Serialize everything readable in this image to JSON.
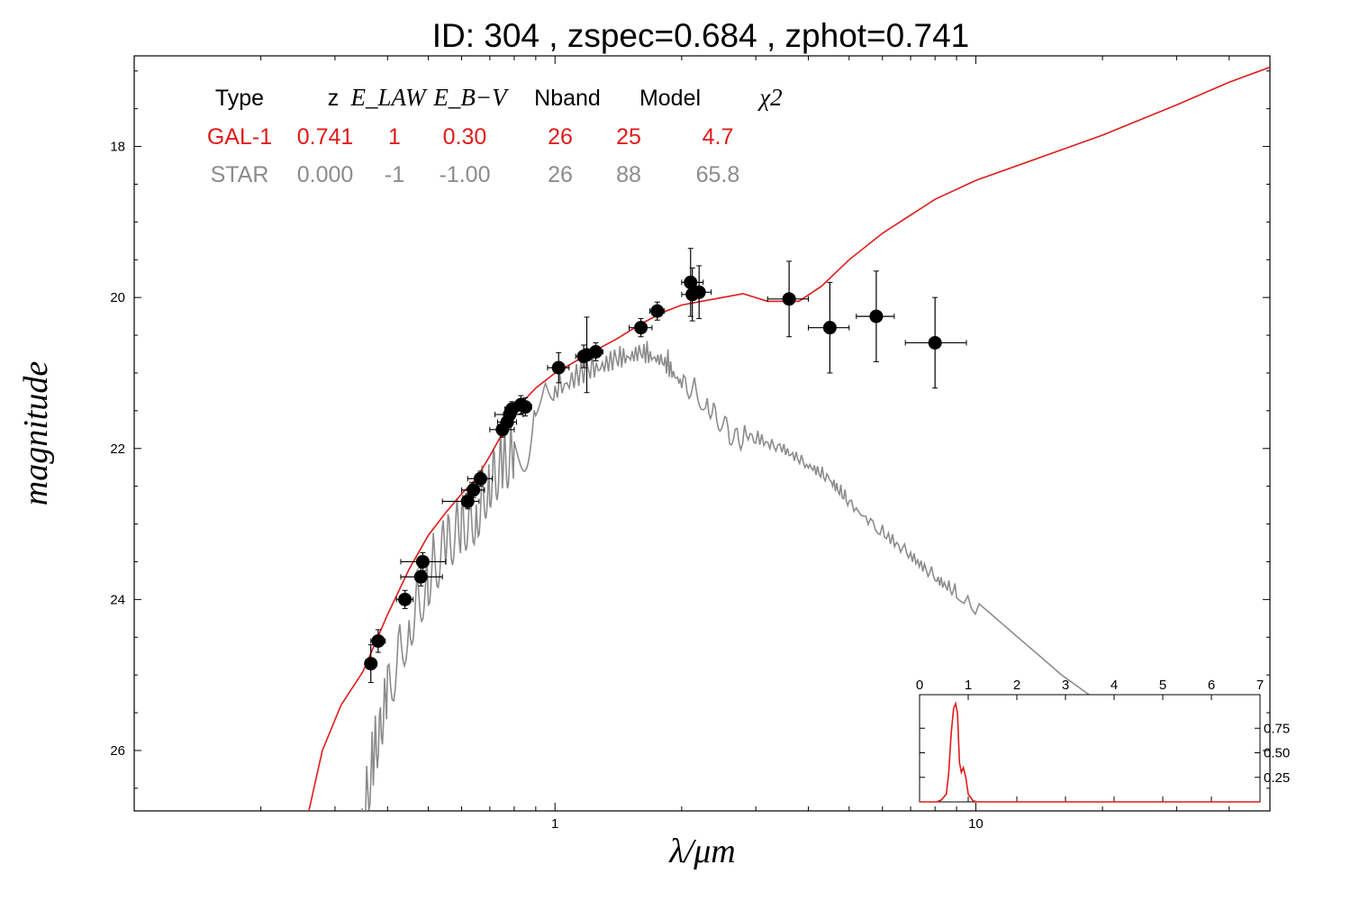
{
  "title": "ID:  304   , zspec=0.684 , zphot=0.741",
  "colors": {
    "galaxy": "#e01b1b",
    "star": "#8c8c8c",
    "points": "#000000",
    "axes": "#000000"
  },
  "chart_data": {
    "type": "scatter",
    "xlabel": "λ/μm",
    "ylabel": "magnitude",
    "xscale": "log",
    "xlim": [
      0.1,
      50
    ],
    "ylim": [
      26.8,
      16.8
    ],
    "y_inverted": true,
    "x_tick_labels": [
      "1",
      "10"
    ],
    "y_tick_labels": [
      "18",
      "20",
      "22",
      "24",
      "26"
    ],
    "table": {
      "headers": [
        "Type",
        "z",
        "E_LAW",
        "E_B−V",
        "Nband",
        "Model",
        "χ2"
      ],
      "rows": [
        {
          "name": "GAL-1",
          "cells": [
            "GAL-1",
            "0.741",
            "1",
            "0.30",
            "26",
            "25",
            "4.7"
          ]
        },
        {
          "name": "STAR",
          "cells": [
            "STAR",
            "0.000",
            "-1",
            "-1.00",
            "26",
            "88",
            "65.8"
          ]
        }
      ]
    },
    "photometry": [
      {
        "x": 0.365,
        "y": 24.85,
        "xerr": [
          0.355,
          0.375
        ],
        "yerr": 0.25
      },
      {
        "x": 0.38,
        "y": 24.55,
        "xerr": [
          0.365,
          0.395
        ],
        "yerr": 0.15
      },
      {
        "x": 0.44,
        "y": 24.0,
        "xerr": [
          0.42,
          0.46
        ],
        "yerr": 0.12
      },
      {
        "x": 0.48,
        "y": 23.7,
        "xerr": [
          0.43,
          0.54
        ],
        "yerr": 0.12
      },
      {
        "x": 0.485,
        "y": 23.5,
        "xerr": [
          0.43,
          0.55
        ],
        "yerr": 0.12
      },
      {
        "x": 0.62,
        "y": 22.7,
        "xerr": [
          0.54,
          0.66
        ],
        "yerr": 0.1
      },
      {
        "x": 0.64,
        "y": 22.55,
        "xerr": [
          0.6,
          0.68
        ],
        "yerr": 0.1
      },
      {
        "x": 0.665,
        "y": 22.4,
        "xerr": [
          0.62,
          0.71
        ],
        "yerr": 0.1
      },
      {
        "x": 0.75,
        "y": 21.75,
        "xerr": [
          0.7,
          0.8
        ],
        "yerr": 0.1
      },
      {
        "x": 0.77,
        "y": 21.65,
        "xerr": [
          0.73,
          0.81
        ],
        "yerr": 0.1
      },
      {
        "x": 0.78,
        "y": 21.55,
        "xerr": [
          0.72,
          0.84
        ],
        "yerr": 0.1
      },
      {
        "x": 0.79,
        "y": 21.48,
        "xerr": [
          0.76,
          0.82
        ],
        "yerr": 0.1
      },
      {
        "x": 0.83,
        "y": 21.42,
        "xerr": [
          0.8,
          0.86
        ],
        "yerr": 0.12
      },
      {
        "x": 0.85,
        "y": 21.45,
        "xerr": [
          0.82,
          0.88
        ],
        "yerr": 0.12
      },
      {
        "x": 1.02,
        "y": 20.93,
        "xerr": [
          0.96,
          1.08
        ],
        "yerr": 0.2
      },
      {
        "x": 1.17,
        "y": 20.78,
        "xerr": [
          1.12,
          1.22
        ],
        "yerr": 0.15
      },
      {
        "x": 1.19,
        "y": 20.76,
        "xerr": [
          1.14,
          1.24
        ],
        "yerr": 0.5
      },
      {
        "x": 1.25,
        "y": 20.72,
        "xerr": [
          1.2,
          1.3
        ],
        "yerr": 0.12
      },
      {
        "x": 1.6,
        "y": 20.4,
        "xerr": [
          1.5,
          1.7
        ],
        "yerr": 0.12
      },
      {
        "x": 1.75,
        "y": 20.18,
        "xerr": [
          1.68,
          1.82
        ],
        "yerr": 0.12
      },
      {
        "x": 2.1,
        "y": 19.8,
        "xerr": [
          2.0,
          2.25
        ],
        "yerr": 0.45
      },
      {
        "x": 2.12,
        "y": 19.96,
        "xerr": [
          2.0,
          2.25
        ],
        "yerr": 0.35
      },
      {
        "x": 2.2,
        "y": 19.93,
        "xerr": [
          2.1,
          2.35
        ],
        "yerr": 0.35
      },
      {
        "x": 3.6,
        "y": 20.02,
        "xerr": [
          3.2,
          4.0
        ],
        "yerr": 0.5
      },
      {
        "x": 4.5,
        "y": 20.4,
        "xerr": [
          4.0,
          5.0
        ],
        "yerr": 0.6
      },
      {
        "x": 5.8,
        "y": 20.25,
        "xerr": [
          5.2,
          6.4
        ],
        "yerr": 0.6
      },
      {
        "x": 8.0,
        "y": 20.6,
        "xerr": [
          6.8,
          9.5
        ],
        "yerr": 0.6
      }
    ],
    "galaxy_model": [
      [
        0.26,
        26.8
      ],
      [
        0.28,
        26.0
      ],
      [
        0.31,
        25.4
      ],
      [
        0.35,
        24.95
      ],
      [
        0.4,
        24.2
      ],
      [
        0.45,
        23.6
      ],
      [
        0.5,
        23.15
      ],
      [
        0.55,
        22.85
      ],
      [
        0.6,
        22.6
      ],
      [
        0.65,
        22.4
      ],
      [
        0.7,
        22.1
      ],
      [
        0.75,
        21.8
      ],
      [
        0.8,
        21.5
      ],
      [
        0.9,
        21.2
      ],
      [
        1.0,
        21.0
      ],
      [
        1.2,
        20.75
      ],
      [
        1.4,
        20.55
      ],
      [
        1.6,
        20.35
      ],
      [
        1.8,
        20.2
      ],
      [
        2.0,
        20.1
      ],
      [
        2.5,
        20.0
      ],
      [
        2.8,
        19.95
      ],
      [
        3.2,
        20.05
      ],
      [
        3.8,
        20.05
      ],
      [
        4.3,
        19.85
      ],
      [
        5.0,
        19.5
      ],
      [
        6.0,
        19.15
      ],
      [
        8.0,
        18.7
      ],
      [
        10,
        18.45
      ],
      [
        15,
        18.1
      ],
      [
        20,
        17.85
      ],
      [
        30,
        17.45
      ],
      [
        40,
        17.15
      ],
      [
        50,
        16.95
      ]
    ],
    "star_model": [
      [
        0.34,
        26.8
      ],
      [
        0.37,
        25.6
      ],
      [
        0.4,
        24.7
      ],
      [
        0.45,
        23.8
      ],
      [
        0.5,
        23.2
      ],
      [
        0.55,
        22.75
      ],
      [
        0.6,
        22.5
      ],
      [
        0.65,
        22.35
      ],
      [
        0.7,
        21.9
      ],
      [
        0.75,
        21.7
      ],
      [
        0.8,
        21.55
      ],
      [
        0.9,
        21.25
      ],
      [
        1.0,
        21.0
      ],
      [
        1.2,
        20.75
      ],
      [
        1.4,
        20.6
      ],
      [
        1.6,
        20.5
      ],
      [
        1.8,
        20.6
      ],
      [
        2.0,
        20.9
      ],
      [
        2.3,
        21.2
      ],
      [
        2.6,
        21.6
      ],
      [
        3.0,
        21.75
      ],
      [
        3.5,
        21.9
      ],
      [
        4.0,
        22.1
      ],
      [
        4.5,
        22.3
      ],
      [
        5.0,
        22.6
      ],
      [
        6.0,
        23.0
      ],
      [
        7.0,
        23.3
      ],
      [
        8.0,
        23.6
      ],
      [
        9.0,
        23.8
      ],
      [
        12,
        24.4
      ],
      [
        16,
        25.0
      ],
      [
        19,
        25.3
      ]
    ],
    "inset": {
      "xlim": [
        0,
        7
      ],
      "ylim": [
        0,
        1.0
      ],
      "x_tick_labels": [
        "0",
        "1",
        "2",
        "3",
        "4",
        "5",
        "6",
        "7"
      ],
      "y_tick_labels": [
        "0.25",
        "0.50",
        "0.75"
      ],
      "pdf": [
        [
          0.0,
          0.0
        ],
        [
          0.35,
          0.0
        ],
        [
          0.45,
          0.02
        ],
        [
          0.55,
          0.08
        ],
        [
          0.6,
          0.3
        ],
        [
          0.65,
          0.7
        ],
        [
          0.7,
          0.95
        ],
        [
          0.74,
          1.0
        ],
        [
          0.78,
          0.9
        ],
        [
          0.82,
          0.4
        ],
        [
          0.86,
          0.3
        ],
        [
          0.9,
          0.35
        ],
        [
          0.95,
          0.25
        ],
        [
          1.0,
          0.08
        ],
        [
          1.1,
          0.01
        ],
        [
          1.2,
          0.0
        ],
        [
          7.0,
          0.0
        ]
      ]
    }
  }
}
